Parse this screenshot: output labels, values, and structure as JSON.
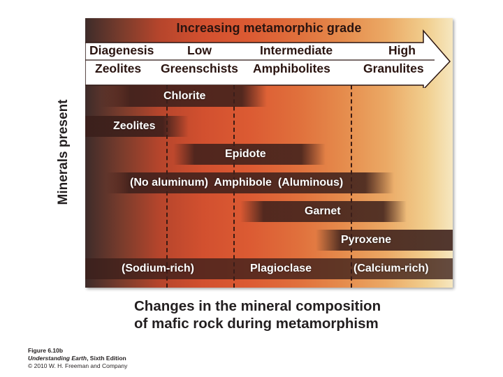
{
  "diagram": {
    "grade_title": "Increasing metamorphic grade",
    "grades": [
      "Diagenesis",
      "Low",
      "Intermediate",
      "High"
    ],
    "facies": [
      "Zeolites",
      "Greenschists",
      "Amphibolites",
      "Granulites"
    ],
    "y_label": "Minerals present",
    "minerals": [
      {
        "label": "Chlorite"
      },
      {
        "label": "Zeolites"
      },
      {
        "label": "Epidote"
      },
      {
        "label": "(No aluminum)  Amphibole  (Aluminous)"
      },
      {
        "label": "Garnet"
      },
      {
        "label": "Pyroxene"
      },
      {
        "labels": [
          "(Sodium-rich)",
          "Plagioclase",
          "(Calcium-rich)"
        ]
      }
    ]
  },
  "caption": {
    "line1": "Changes in the mineral composition",
    "line2": "of mafic rock during metamorphism"
  },
  "credit": {
    "figure": "Figure 6.10b",
    "book": "Understanding Earth",
    "edition": ", Sixth Edition",
    "copyright": "© 2010 W. H. Freeman and Company"
  },
  "colors": {
    "bar_dark": "#3b1f1b",
    "arrow_fill": "#ffffff",
    "text_dark": "#231f20"
  }
}
